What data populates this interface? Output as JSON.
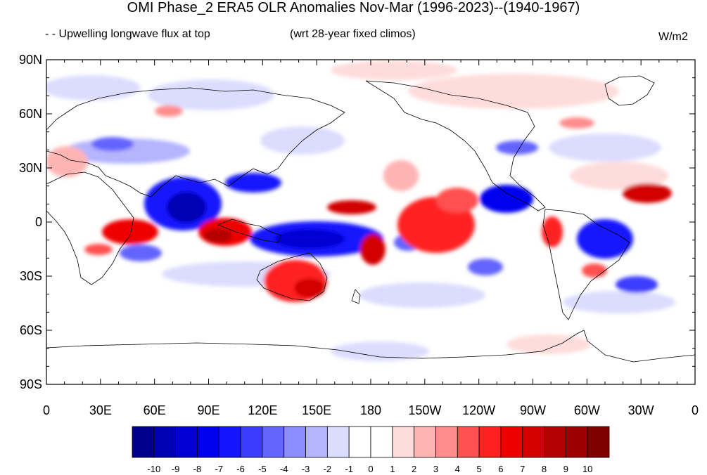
{
  "title": "OMI Phase_2 ERA5 OLR Anomalies Nov-Mar (1996-2023)--(1940-1967)",
  "left_subtitle": "- - Upwelling longwave flux at top",
  "center_subtitle": "(wrt 28-year fixed climos)",
  "units": "W/m2",
  "lat_labels": [
    "90N",
    "60N",
    "30N",
    "0",
    "30S",
    "60S",
    "90S"
  ],
  "lon_labels": [
    "0",
    "30E",
    "60E",
    "90E",
    "120E",
    "150E",
    "180",
    "150W",
    "120W",
    "90W",
    "60W",
    "30W",
    "0"
  ],
  "colorbar": {
    "labels": [
      "-10",
      "-9",
      "-8",
      "-7",
      "-6",
      "-5",
      "-4",
      "-3",
      "-2",
      "-1",
      "0",
      "1",
      "2",
      "3",
      "4",
      "5",
      "6",
      "7",
      "8",
      "9",
      "10"
    ],
    "colors": [
      "#00008c",
      "#0000b4",
      "#0000d2",
      "#0000ee",
      "#1414ff",
      "#3c3cff",
      "#6464ff",
      "#8c8cff",
      "#b4b4ff",
      "#dcdcff",
      "#ffffff",
      "#ffffff",
      "#ffdcdc",
      "#ffb4b4",
      "#ff8c8c",
      "#ff5050",
      "#ff2020",
      "#ee0000",
      "#d20000",
      "#b40000",
      "#9c0000",
      "#800000"
    ]
  }
}
